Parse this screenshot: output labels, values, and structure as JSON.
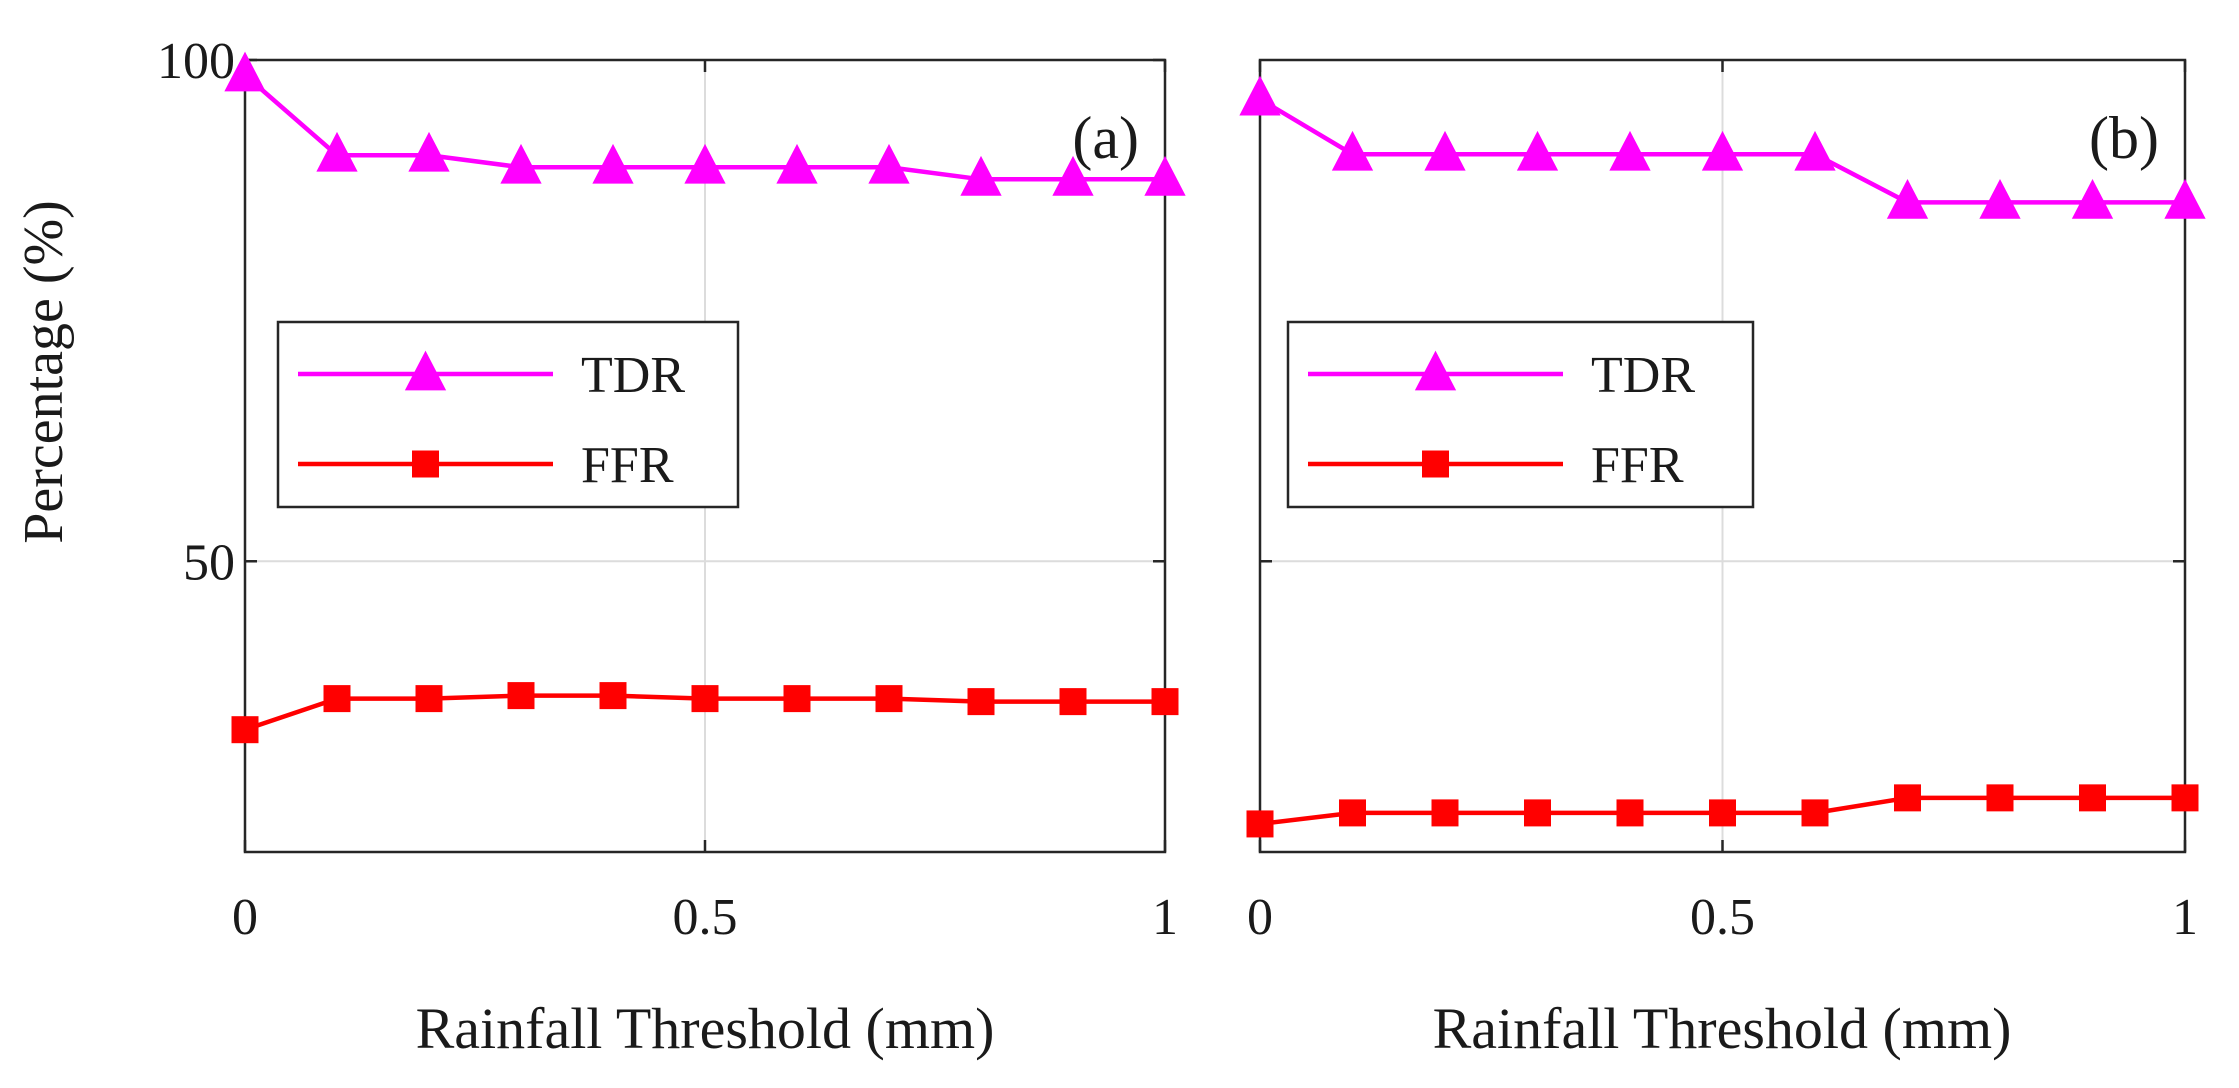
{
  "figure": {
    "ylabel": "Percentage (%)"
  },
  "chart_data": [
    {
      "type": "line",
      "panel_label": "(a)",
      "xlabel": "Rainfall Threshold (mm)",
      "ylabel": "Percentage (%)",
      "xlim": [
        0,
        1
      ],
      "ylim": [
        21,
        100
      ],
      "xticks": [
        0,
        0.5,
        1
      ],
      "xtick_labels": [
        "0",
        "0.5",
        "1"
      ],
      "yticks": [
        50,
        100
      ],
      "ytick_labels": [
        "50",
        "100"
      ],
      "grid": true,
      "legend_position": "center-left",
      "x": [
        0,
        0.1,
        0.2,
        0.3,
        0.4,
        0.5,
        0.6,
        0.7,
        0.8,
        0.9,
        1.0
      ],
      "series": [
        {
          "name": "TDR",
          "color": "#ff00ff",
          "marker": "triangle",
          "values": [
            98.5,
            90.5,
            90.5,
            89.3,
            89.3,
            89.3,
            89.3,
            89.3,
            88.1,
            88.1,
            88.1
          ]
        },
        {
          "name": "FFR",
          "color": "#ff0000",
          "marker": "square",
          "values": [
            33.2,
            36.3,
            36.3,
            36.6,
            36.6,
            36.3,
            36.3,
            36.3,
            36.0,
            36.0,
            36.0
          ]
        }
      ]
    },
    {
      "type": "line",
      "panel_label": "(b)",
      "xlabel": "Rainfall Threshold (mm)",
      "ylabel": "",
      "xlim": [
        0,
        1
      ],
      "ylim": [
        21,
        100
      ],
      "xticks": [
        0,
        0.5,
        1
      ],
      "xtick_labels": [
        "0",
        "0.5",
        "1"
      ],
      "yticks": [],
      "ytick_labels": [],
      "grid": true,
      "legend_position": "center-left",
      "x": [
        0,
        0.1,
        0.2,
        0.3,
        0.4,
        0.5,
        0.6,
        0.7,
        0.8,
        0.9,
        1.0
      ],
      "series": [
        {
          "name": "TDR",
          "color": "#ff00ff",
          "marker": "triangle",
          "values": [
            96.1,
            90.6,
            90.6,
            90.6,
            90.6,
            90.6,
            90.6,
            85.8,
            85.8,
            85.8,
            85.8
          ]
        },
        {
          "name": "FFR",
          "color": "#ff0000",
          "marker": "square",
          "values": [
            23.8,
            24.9,
            24.9,
            24.9,
            24.9,
            24.9,
            24.9,
            26.4,
            26.4,
            26.4,
            26.4
          ]
        }
      ]
    }
  ]
}
